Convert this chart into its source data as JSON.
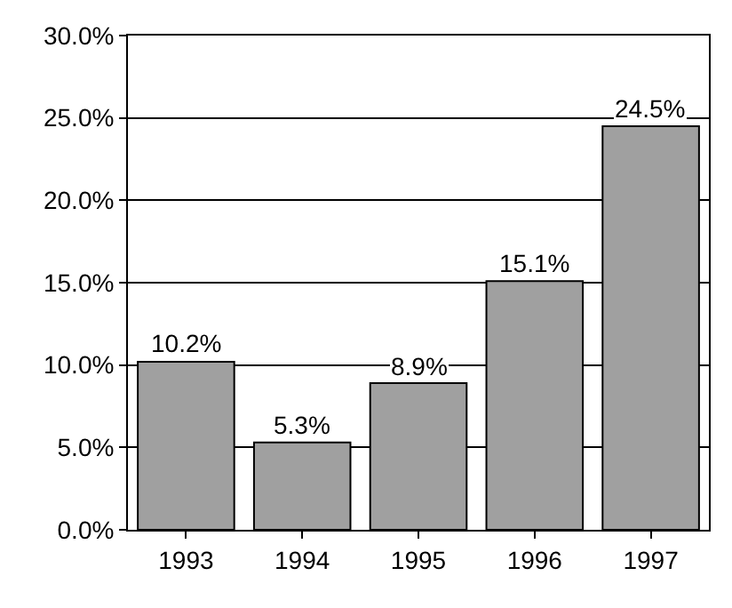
{
  "chart_data": {
    "type": "bar",
    "categories": [
      "1993",
      "1994",
      "1995",
      "1996",
      "1997"
    ],
    "values": [
      10.2,
      5.3,
      8.9,
      15.1,
      24.5
    ],
    "value_labels": [
      "10.2%",
      "5.3%",
      "8.9%",
      "15.1%",
      "24.5%"
    ],
    "color": "#a0a0a0",
    "ylim": [
      0,
      30
    ],
    "yticks": [
      {
        "value": 0,
        "label": "0.0%"
      },
      {
        "value": 5,
        "label": "5.0%"
      },
      {
        "value": 10,
        "label": "10.0%"
      },
      {
        "value": 15,
        "label": "15.0%"
      },
      {
        "value": 20,
        "label": "20.0%"
      },
      {
        "value": 25,
        "label": "25.0%"
      },
      {
        "value": 30,
        "label": "30.0%"
      }
    ],
    "grid": "y"
  }
}
